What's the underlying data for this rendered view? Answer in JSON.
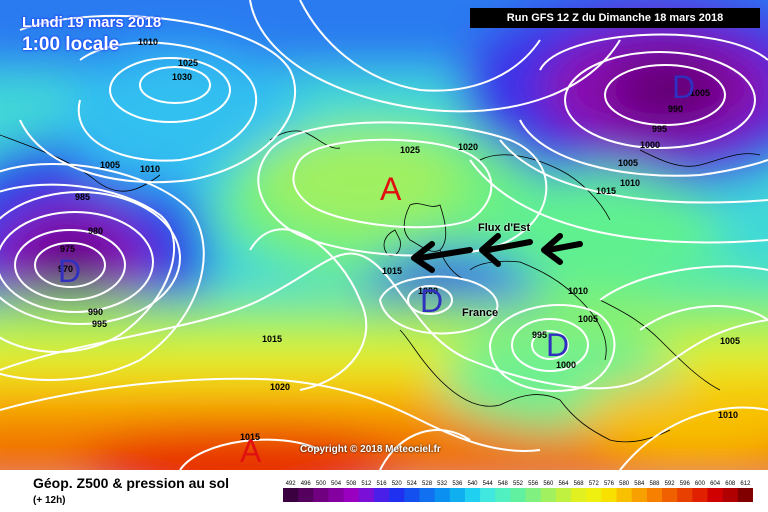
{
  "header": {
    "date": "Lundi 19 mars 2018",
    "time": "1:00 locale",
    "run": "Run GFS 12 Z du Dimanche 18 mars 2018"
  },
  "footer": {
    "title": "Géop. Z500 & pression au sol",
    "subtitle": "(+ 12h)",
    "copyright": "Copyright © 2018 Meteociel.fr"
  },
  "annotations": {
    "flux": "Flux d'Est",
    "france": "France"
  },
  "centers": [
    {
      "label": "A",
      "kind": "high"
    },
    {
      "label": "A",
      "kind": "high"
    },
    {
      "label": "D",
      "kind": "low"
    },
    {
      "label": "D",
      "kind": "low"
    },
    {
      "label": "D",
      "kind": "low"
    },
    {
      "label": "D",
      "kind": "low"
    }
  ],
  "isobar_labels": [
    "1010",
    "1025",
    "1030",
    "1005",
    "1010",
    "985",
    "980",
    "975",
    "970",
    "990",
    "995",
    "1025",
    "1020",
    "990",
    "995",
    "1000",
    "1005",
    "1010",
    "1015",
    "1015",
    "1000",
    "1010",
    "1005",
    "995",
    "1000",
    "1005",
    "1015",
    "1020",
    "1015",
    "1005",
    "1010"
  ],
  "legend": {
    "values": [
      "492",
      "496",
      "500",
      "504",
      "508",
      "512",
      "516",
      "520",
      "524",
      "528",
      "532",
      "536",
      "540",
      "544",
      "548",
      "552",
      "556",
      "560",
      "564",
      "568",
      "572",
      "576",
      "580",
      "584",
      "588",
      "592",
      "596",
      "600",
      "604",
      "608",
      "612"
    ],
    "colors": [
      "#3a0040",
      "#55005e",
      "#700080",
      "#8400a0",
      "#9a00c0",
      "#7a10d8",
      "#4a1fe8",
      "#2030f0",
      "#1450f0",
      "#1070f0",
      "#0a90f0",
      "#10b0f0",
      "#20d0f0",
      "#40e8e0",
      "#50f0c0",
      "#60f0a0",
      "#80f080",
      "#a0f060",
      "#c0f040",
      "#e0f020",
      "#f0f010",
      "#f8e000",
      "#f8c000",
      "#f8a000",
      "#f88000",
      "#f06000",
      "#e84000",
      "#e02000",
      "#d00000",
      "#b00000",
      "#800000"
    ]
  },
  "colors": {
    "high_label": "#e01010",
    "low_label": "#3030c0",
    "isobar": "#ffffff",
    "arrow": "#000000"
  }
}
